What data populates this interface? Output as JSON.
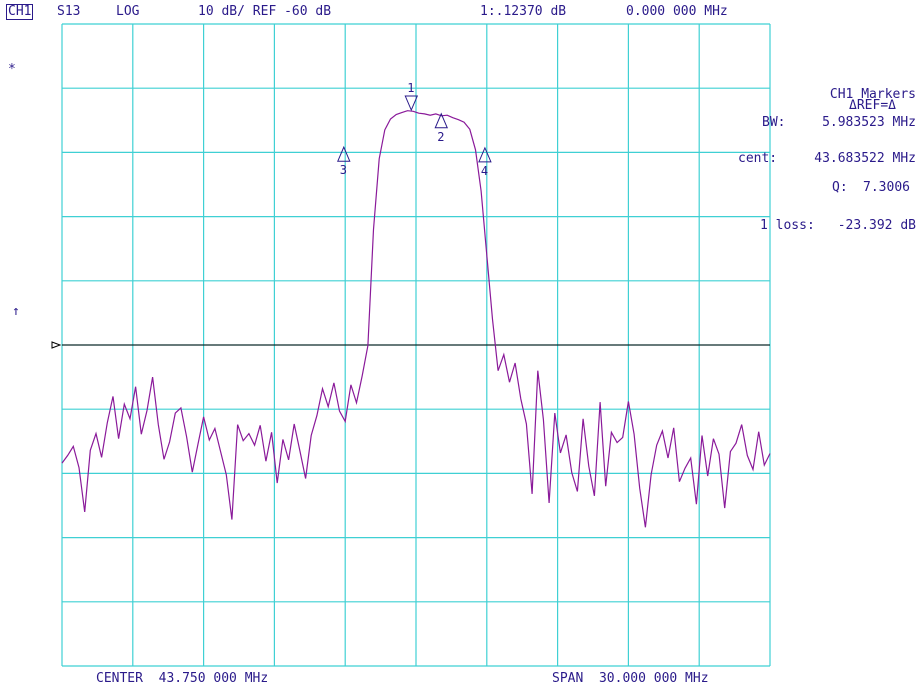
{
  "header": {
    "channel": "CH1",
    "param": "S13",
    "format": "LOG",
    "scale": "10 dB/ REF -60 dB",
    "marker_readout": "1:.12370 dB",
    "marker_freq": "0.000 000 MHz"
  },
  "side_marks": {
    "star": "*",
    "arrow": "↑"
  },
  "markers_panel": {
    "title": "CH1 Markers",
    "mode": "ΔREF=Δ",
    "bw_label": "BW:",
    "bw_value": "5.983523 MHz",
    "cent_label": "cent:",
    "cent_value": "43.683522 MHz",
    "q_label": "Q:",
    "q_value": "7.3006",
    "loss_label": "1 loss:",
    "loss_value": "-23.392 dB"
  },
  "footer": {
    "center": "CENTER  43.750 000 MHz",
    "span": "SPAN  30.000 000 MHz"
  },
  "chart_data": {
    "type": "line",
    "x_unit": "MHz",
    "xlim": [
      28.75,
      58.75
    ],
    "y_unit": "dB",
    "ylim": [
      -110,
      -10
    ],
    "reference_level": -60,
    "grid": true,
    "colors": {
      "grid": "#3fd0d4",
      "trace": "#8a1a9a",
      "reference": "#000000",
      "text": "#2a1a8a"
    },
    "markers": [
      {
        "label": "1",
        "x": 43.55,
        "y": -23.4,
        "style": "down"
      },
      {
        "label": "2",
        "x": 44.82,
        "y": -24.3,
        "style": "up"
      },
      {
        "label": "3",
        "x": 40.69,
        "y": -29.5,
        "style": "up"
      },
      {
        "label": "4",
        "x": 46.67,
        "y": -29.6,
        "style": "up"
      }
    ],
    "series": [
      {
        "x": [
          28.75,
          28.99,
          29.23,
          29.47,
          29.71,
          29.95,
          30.19,
          30.43,
          30.67,
          30.91,
          31.15,
          31.39,
          31.63,
          31.87,
          32.11,
          32.35,
          32.59,
          32.83,
          33.07,
          33.31,
          33.55,
          33.79,
          34.03,
          34.27,
          34.51,
          34.75,
          34.99,
          35.23,
          35.47,
          35.71,
          35.95,
          36.19,
          36.43,
          36.67,
          36.91,
          37.15,
          37.39,
          37.63,
          37.87,
          38.11,
          38.35,
          38.59,
          38.83,
          39.07,
          39.31,
          39.55,
          39.79,
          40.03,
          40.27,
          40.51,
          40.75,
          40.99,
          41.23,
          41.47,
          41.71,
          41.95,
          42.19,
          42.43,
          42.67,
          42.91,
          43.15,
          43.39,
          43.63,
          43.87,
          44.11,
          44.35,
          44.59,
          44.83,
          45.07,
          45.31,
          45.55,
          45.79,
          46.03,
          46.27,
          46.51,
          46.75,
          46.99,
          47.23,
          47.47,
          47.71,
          47.95,
          48.19,
          48.43,
          48.67,
          48.91,
          49.15,
          49.39,
          49.63,
          49.87,
          50.11,
          50.35,
          50.59,
          50.83,
          51.07,
          51.31,
          51.55,
          51.79,
          52.03,
          52.27,
          52.51,
          52.75,
          52.99,
          53.23,
          53.47,
          53.71,
          53.95,
          54.19,
          54.43,
          54.67,
          54.91,
          55.15,
          55.39,
          55.63,
          55.87,
          56.11,
          56.35,
          56.59,
          56.83,
          57.07,
          57.31,
          57.55,
          57.79,
          58.03,
          58.27,
          58.51,
          58.75
        ],
        "y": [
          -78.4,
          -77.2,
          -75.8,
          -79.1,
          -86.0,
          -76.4,
          -73.8,
          -77.5,
          -72.1,
          -68.0,
          -74.6,
          -69.2,
          -71.5,
          -66.5,
          -73.9,
          -70.2,
          -65.0,
          -72.4,
          -77.8,
          -75.1,
          -70.6,
          -69.8,
          -74.3,
          -79.8,
          -75.5,
          -71.2,
          -74.8,
          -73.0,
          -76.6,
          -80.2,
          -87.2,
          -72.4,
          -74.9,
          -73.8,
          -75.6,
          -72.5,
          -78.1,
          -73.6,
          -81.5,
          -74.7,
          -77.9,
          -72.3,
          -76.5,
          -80.8,
          -74.1,
          -71.0,
          -66.8,
          -69.6,
          -65.9,
          -70.3,
          -71.9,
          -66.2,
          -69.0,
          -64.8,
          -60.1,
          -42.0,
          -31.0,
          -26.5,
          -24.8,
          -24.1,
          -23.8,
          -23.5,
          -23.6,
          -23.9,
          -24.0,
          -24.2,
          -24.0,
          -24.3,
          -24.2,
          -24.6,
          -24.9,
          -25.3,
          -26.4,
          -29.6,
          -36.0,
          -46.0,
          -56.0,
          -64.0,
          -61.5,
          -65.8,
          -62.8,
          -68.4,
          -72.3,
          -83.2,
          -64.0,
          -71.6,
          -84.6,
          -70.6,
          -76.8,
          -74.0,
          -79.9,
          -82.8,
          -71.5,
          -78.9,
          -83.5,
          -68.9,
          -82.0,
          -73.6,
          -75.2,
          -74.4,
          -68.8,
          -73.9,
          -82.3,
          -88.4,
          -80.2,
          -75.6,
          -73.4,
          -77.6,
          -72.9,
          -81.3,
          -79.2,
          -77.6,
          -84.8,
          -74.1,
          -80.4,
          -74.6,
          -77.0,
          -85.4,
          -76.6,
          -75.3,
          -72.4,
          -77.2,
          -79.4,
          -73.5,
          -78.7,
          -76.9
        ]
      }
    ]
  }
}
